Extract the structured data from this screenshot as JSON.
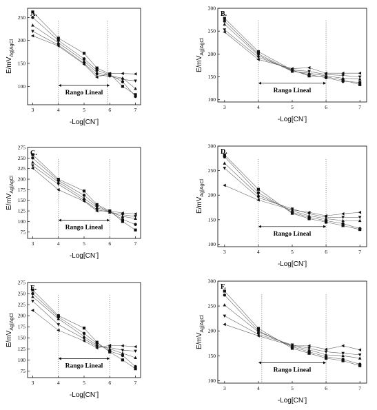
{
  "chart_data": [
    {
      "type": "scatter",
      "panel": "A.",
      "xlabel": "-Log[CN-]",
      "ylabel": "E/mVAg|AgCl",
      "xlim": [
        2.8,
        7.2
      ],
      "ylim": [
        60,
        270
      ],
      "xticks": [
        3,
        4,
        5,
        6,
        7
      ],
      "yticks": [
        100,
        150,
        200,
        250
      ],
      "range_label": "Rango Lineal",
      "range_x": [
        4,
        6
      ],
      "dotted_lines_x": [
        4,
        5.9
      ],
      "x": [
        3,
        4,
        5,
        5.5,
        6,
        6.5,
        7
      ],
      "series": [
        {
          "marker": "square",
          "values": [
            262,
            205,
            172,
            140,
            127,
            100,
            82
          ]
        },
        {
          "marker": "circle",
          "values": [
            250,
            200,
            160,
            135,
            125,
            110,
            78
          ]
        },
        {
          "marker": "triangle-up",
          "values": [
            233,
            195,
            155,
            130,
            123,
            118,
            95
          ]
        },
        {
          "marker": "triangle-down",
          "values": [
            220,
            190,
            150,
            125,
            122,
            115,
            112
          ]
        },
        {
          "marker": "triangle-left",
          "values": [
            210,
            188,
            148,
            120,
            128,
            128,
            127
          ]
        }
      ]
    },
    {
      "type": "scatter",
      "panel": "B.",
      "xlabel": "-Log[CN-]",
      "ylabel": "E/mVAg|AgCl",
      "xlim": [
        2.8,
        7.2
      ],
      "ylim": [
        95,
        300
      ],
      "xticks": [
        3,
        4,
        5,
        6,
        7
      ],
      "yticks": [
        100,
        150,
        200,
        250,
        300
      ],
      "range_label": "Rango Lineal",
      "range_x": [
        4,
        6
      ],
      "dotted_lines_x": [
        4,
        6
      ],
      "x": [
        3,
        4,
        5,
        5.5,
        6,
        6.5,
        7
      ],
      "series": [
        {
          "marker": "square",
          "values": [
            278,
            205,
            165,
            152,
            150,
            143,
            133
          ]
        },
        {
          "marker": "circle",
          "values": [
            272,
            200,
            163,
            155,
            148,
            140,
            138
          ]
        },
        {
          "marker": "triangle-up",
          "values": [
            265,
            197,
            162,
            158,
            152,
            147,
            145
          ]
        },
        {
          "marker": "triangle-down",
          "values": [
            253,
            193,
            165,
            162,
            155,
            153,
            150
          ]
        },
        {
          "marker": "triangle-left",
          "values": [
            248,
            188,
            168,
            170,
            158,
            158,
            158
          ]
        }
      ]
    },
    {
      "type": "scatter",
      "panel": "C.",
      "xlabel": "-Log[CN-]",
      "ylabel": "E/mVAg|AgCl",
      "xlim": [
        2.8,
        7.2
      ],
      "ylim": [
        60,
        275
      ],
      "xticks": [
        3,
        4,
        5,
        6,
        7
      ],
      "yticks": [
        75,
        100,
        125,
        150,
        175,
        200,
        225,
        250,
        275
      ],
      "range_label": "Rango Lineal",
      "range_x": [
        4,
        6
      ],
      "dotted_lines_x": [
        4,
        6
      ],
      "x": [
        3,
        4,
        5,
        5.5,
        6,
        6.5,
        7
      ],
      "series": [
        {
          "marker": "square",
          "values": [
            258,
            200,
            172,
            140,
            125,
            100,
            80
          ]
        },
        {
          "marker": "circle",
          "values": [
            250,
            197,
            162,
            137,
            123,
            105,
            93
          ]
        },
        {
          "marker": "triangle-up",
          "values": [
            240,
            193,
            155,
            133,
            122,
            112,
            107
          ]
        },
        {
          "marker": "triangle-down",
          "values": [
            232,
            188,
            150,
            128,
            122,
            116,
            112
          ]
        },
        {
          "marker": "triangle-left",
          "values": [
            226,
            175,
            148,
            125,
            125,
            120,
            118
          ]
        }
      ]
    },
    {
      "type": "scatter",
      "panel": "D.",
      "xlabel": "-Log[CN-]",
      "ylabel": "E/mVAg|AgCl",
      "xlim": [
        2.8,
        7.2
      ],
      "ylim": [
        95,
        300
      ],
      "xticks": [
        3,
        4,
        5,
        6,
        7
      ],
      "yticks": [
        100,
        150,
        200,
        250,
        300
      ],
      "range_label": "Rango Lineal",
      "range_x": [
        4,
        6
      ],
      "dotted_lines_x": [
        4,
        6
      ],
      "x": [
        3,
        4,
        5,
        5.5,
        6,
        6.5,
        7
      ],
      "series": [
        {
          "marker": "square",
          "values": [
            282,
            212,
            163,
            152,
            145,
            138,
            130
          ]
        },
        {
          "marker": "circle",
          "values": [
            278,
            205,
            165,
            155,
            148,
            142,
            132
          ]
        },
        {
          "marker": "triangle-up",
          "values": [
            265,
            200,
            168,
            158,
            152,
            148,
            148
          ]
        },
        {
          "marker": "triangle-down",
          "values": [
            255,
            195,
            172,
            162,
            155,
            155,
            155
          ]
        },
        {
          "marker": "triangle-left",
          "values": [
            220,
            190,
            170,
            165,
            158,
            162,
            165
          ]
        }
      ]
    },
    {
      "type": "scatter",
      "panel": "E.",
      "xlabel": "-Log[CN-]",
      "ylabel": "E/mVAg|AgCl",
      "xlim": [
        2.8,
        7.2
      ],
      "ylim": [
        60,
        275
      ],
      "xticks": [
        3,
        4,
        5,
        6,
        7
      ],
      "yticks": [
        75,
        100,
        125,
        150,
        175,
        200,
        225,
        250,
        275
      ],
      "range_label": "Rango Lineal",
      "range_x": [
        4,
        6
      ],
      "dotted_lines_x": [
        4,
        6
      ],
      "x": [
        3,
        4,
        5,
        5.5,
        6,
        6.5,
        7
      ],
      "series": [
        {
          "marker": "square",
          "values": [
            258,
            200,
            172,
            140,
            118,
            100,
            80
          ]
        },
        {
          "marker": "circle",
          "values": [
            250,
            197,
            160,
            137,
            120,
            110,
            85
          ]
        },
        {
          "marker": "triangle-up",
          "values": [
            243,
            193,
            153,
            133,
            125,
            115,
            105
          ]
        },
        {
          "marker": "triangle-down",
          "values": [
            233,
            180,
            148,
            130,
            128,
            122,
            120
          ]
        },
        {
          "marker": "triangle-left",
          "values": [
            212,
            167,
            143,
            127,
            133,
            132,
            130
          ]
        }
      ]
    },
    {
      "type": "scatter",
      "panel": "F.",
      "xlabel": "-Log[CN-]",
      "ylabel": "E/mVAg|AgCl",
      "xlim": [
        2.8,
        7.2
      ],
      "ylim": [
        95,
        300
      ],
      "xticks": [
        3,
        4,
        5,
        6,
        7
      ],
      "yticks": [
        100,
        150,
        200,
        250,
        300
      ],
      "range_label": "Rango Lineal",
      "range_x": [
        4,
        6
      ],
      "dotted_lines_x": [
        4.1,
        6
      ],
      "x": [
        3,
        4,
        5,
        5.5,
        6,
        6.5,
        7
      ],
      "series": [
        {
          "marker": "square",
          "values": [
            280,
            205,
            165,
            155,
            145,
            140,
            130
          ]
        },
        {
          "marker": "circle",
          "values": [
            272,
            200,
            168,
            158,
            148,
            143,
            133
          ]
        },
        {
          "marker": "triangle-up",
          "values": [
            252,
            198,
            170,
            162,
            152,
            150,
            145
          ]
        },
        {
          "marker": "triangle-down",
          "values": [
            230,
            193,
            172,
            165,
            158,
            155,
            152
          ]
        },
        {
          "marker": "triangle-left",
          "values": [
            213,
            190,
            170,
            170,
            163,
            170,
            162
          ]
        }
      ]
    }
  ]
}
